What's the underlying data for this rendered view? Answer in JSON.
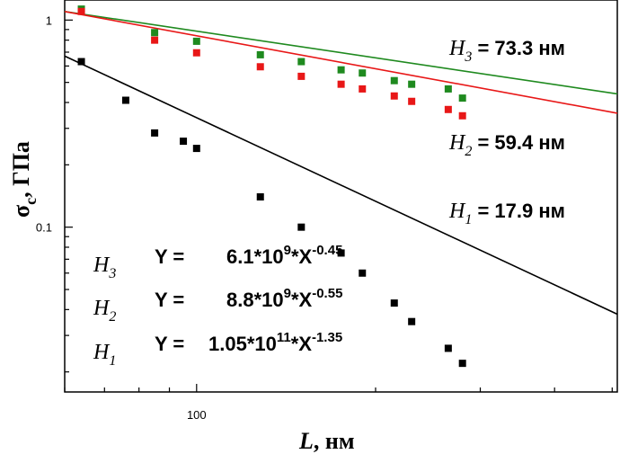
{
  "chart_data": {
    "type": "scatter",
    "x_scale": "log",
    "y_scale": "log",
    "xlim": [
      60,
      510
    ],
    "ylim": [
      0.016,
      1.25
    ],
    "x_ticks": [
      {
        "value": 100,
        "label": "100"
      }
    ],
    "y_ticks": [
      {
        "value": 1,
        "label": "1"
      },
      {
        "value": 0.1,
        "label": "0.1"
      }
    ],
    "xlabel": {
      "var": "L",
      "rest": ", нм"
    },
    "ylabel": {
      "var": "σ",
      "sub": "c",
      "rest": ", ГПа"
    },
    "colors": {
      "H3": "#1f8a1f",
      "H2": "#e81717",
      "H1": "#000000"
    },
    "series": [
      {
        "name": "H3",
        "fit": {
          "text": "Y = 6.1*10^9*X^-0.45",
          "y_start": 1.1,
          "y_end": 0.44
        },
        "x": [
          64,
          85,
          100,
          128,
          150,
          175,
          190,
          215,
          230,
          265,
          280
        ],
        "y": [
          1.13,
          0.87,
          0.79,
          0.68,
          0.63,
          0.575,
          0.555,
          0.51,
          0.49,
          0.465,
          0.42
        ]
      },
      {
        "name": "H2",
        "fit": {
          "text": "Y = 8.8*10^9*X^-0.55",
          "y_start": 1.1,
          "y_end": 0.355
        },
        "x": [
          64,
          85,
          100,
          128,
          150,
          175,
          190,
          215,
          230,
          265,
          280
        ],
        "y": [
          1.1,
          0.8,
          0.695,
          0.595,
          0.535,
          0.49,
          0.465,
          0.43,
          0.405,
          0.37,
          0.345
        ]
      },
      {
        "name": "H1",
        "fit": {
          "text": "Y = 1.05*10^11*X^-1.35",
          "y_start": 0.67,
          "y_end": 0.038
        },
        "x": [
          64,
          76,
          85,
          95,
          100,
          128,
          150,
          175,
          190,
          215,
          230,
          265,
          280
        ],
        "y": [
          0.63,
          0.41,
          0.285,
          0.26,
          0.24,
          0.14,
          0.1,
          0.075,
          0.06,
          0.043,
          0.035,
          0.026,
          0.022
        ]
      }
    ],
    "labels": {
      "H3": {
        "h": "H",
        "sub": "3",
        "val": " = 73.3 нм"
      },
      "H2": {
        "h": "H",
        "sub": "2",
        "val": " = 59.4 нм"
      },
      "H1": {
        "h": "H",
        "sub": "1",
        "val": " = 17.9 нм"
      }
    },
    "equations": [
      {
        "h": "H",
        "sub": "3",
        "lhs": "Y =",
        "coef": "6.1*10",
        "exp1": "9",
        "mid": "*X",
        "exp2": "-0.45"
      },
      {
        "h": "H",
        "sub": "2",
        "lhs": "Y =",
        "coef": "8.8*10",
        "exp1": "9",
        "mid": "*X",
        "exp2": "-0.55"
      },
      {
        "h": "H",
        "sub": "1",
        "lhs": "Y =",
        "coef": "1.05*10",
        "exp1": "11",
        "mid": "*X",
        "exp2": "-1.35"
      }
    ]
  }
}
